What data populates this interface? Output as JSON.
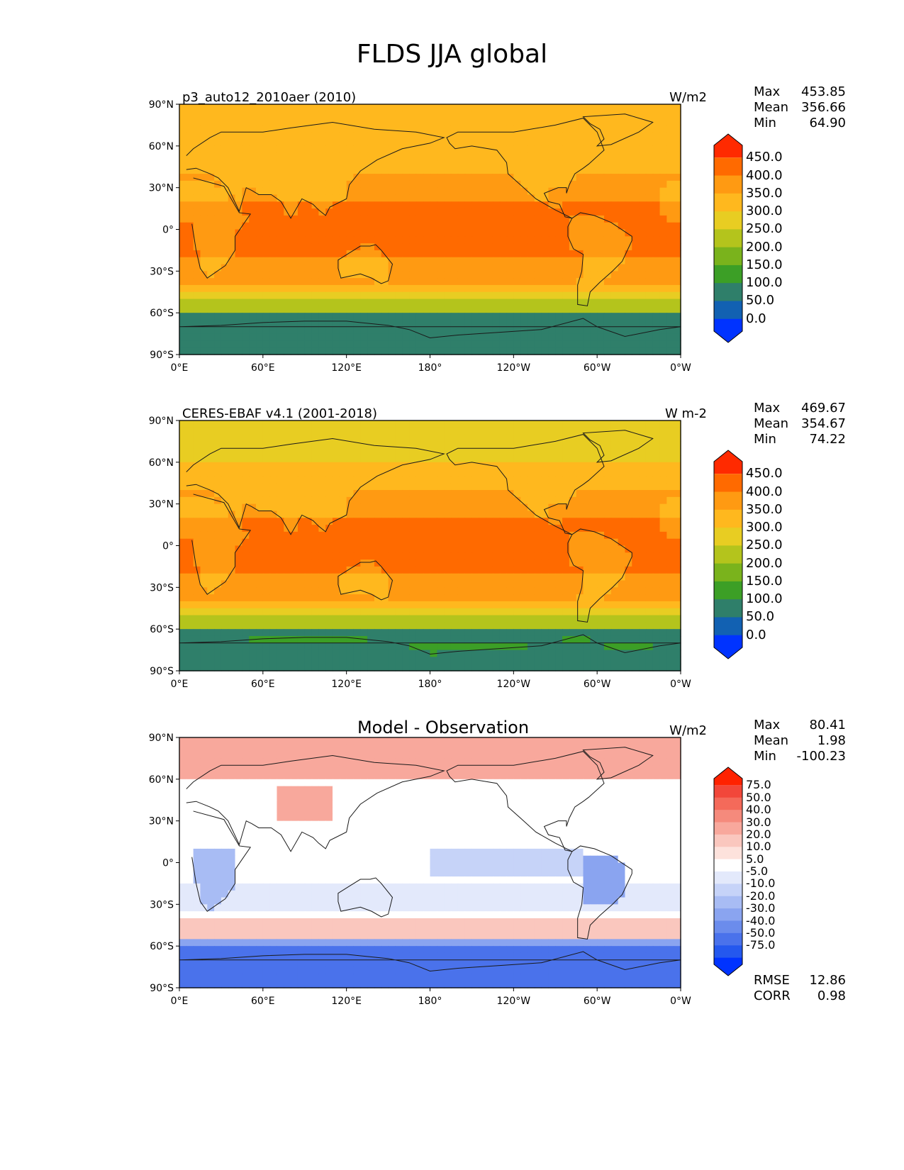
{
  "figure_title": "FLDS JJA global",
  "lat_ticks": [
    "90°N",
    "60°N",
    "30°N",
    "0°",
    "30°S",
    "60°S",
    "90°S"
  ],
  "lon_ticks": [
    "0°E",
    "60°E",
    "120°E",
    "180°",
    "120°W",
    "60°W",
    "0°W"
  ],
  "panels": [
    {
      "title_left": "p3_auto12_2010aer (2010)",
      "title_center": "",
      "units": "W/m2",
      "stats": [
        {
          "label": "Max",
          "value": "453.85"
        },
        {
          "label": "Mean",
          "value": "356.66"
        },
        {
          "label": "Min",
          "value": "64.90"
        }
      ],
      "colorbar": {
        "labels": [
          "450.0",
          "400.0",
          "350.0",
          "300.0",
          "250.0",
          "200.0",
          "150.0",
          "100.0",
          "50.0",
          "0.0"
        ],
        "colors": [
          "#ff2a00",
          "#ff6a00",
          "#ff9a12",
          "#ffb81e",
          "#e8cd22",
          "#b4c41c",
          "#7ab31c",
          "#3c9f26",
          "#2f7f6a",
          "#1261b2",
          "#0033ff"
        ]
      },
      "extra": []
    },
    {
      "title_left": "CERES-EBAF v4.1 (2001-2018)",
      "title_center": "",
      "units": "W m-2",
      "stats": [
        {
          "label": "Max",
          "value": "469.67"
        },
        {
          "label": "Mean",
          "value": "354.67"
        },
        {
          "label": "Min",
          "value": "74.22"
        }
      ],
      "colorbar": {
        "labels": [
          "450.0",
          "400.0",
          "350.0",
          "300.0",
          "250.0",
          "200.0",
          "150.0",
          "100.0",
          "50.0",
          "0.0"
        ],
        "colors": [
          "#ff2a00",
          "#ff6a00",
          "#ff9a12",
          "#ffb81e",
          "#e8cd22",
          "#b4c41c",
          "#7ab31c",
          "#3c9f26",
          "#2f7f6a",
          "#1261b2",
          "#0033ff"
        ]
      },
      "extra": []
    },
    {
      "title_left": "",
      "title_center": "Model - Observation",
      "units": "W/m2",
      "stats": [
        {
          "label": "Max",
          "value": "80.41"
        },
        {
          "label": "Mean",
          "value": "1.98"
        },
        {
          "label": "Min",
          "value": "-100.23"
        }
      ],
      "colorbar": {
        "labels": [
          "75.0",
          "50.0",
          "40.0",
          "30.0",
          "20.0",
          "10.0",
          "5.0",
          "-5.0",
          "-10.0",
          "-20.0",
          "-30.0",
          "-40.0",
          "-50.0",
          "-75.0"
        ],
        "colors": [
          "#ff2200",
          "#f2473a",
          "#f46a5a",
          "#f58a7c",
          "#f8a89c",
          "#fac7be",
          "#fde2dc",
          "#ffffff",
          "#e3e9fb",
          "#c6d3f8",
          "#a8bcf4",
          "#8aa4f0",
          "#6b8cec",
          "#4a72eb",
          "#2458ee",
          "#0033ff"
        ]
      },
      "extra": [
        {
          "label": "RMSE",
          "value": "12.86"
        },
        {
          "label": "CORR",
          "value": "0.98"
        }
      ]
    }
  ]
}
